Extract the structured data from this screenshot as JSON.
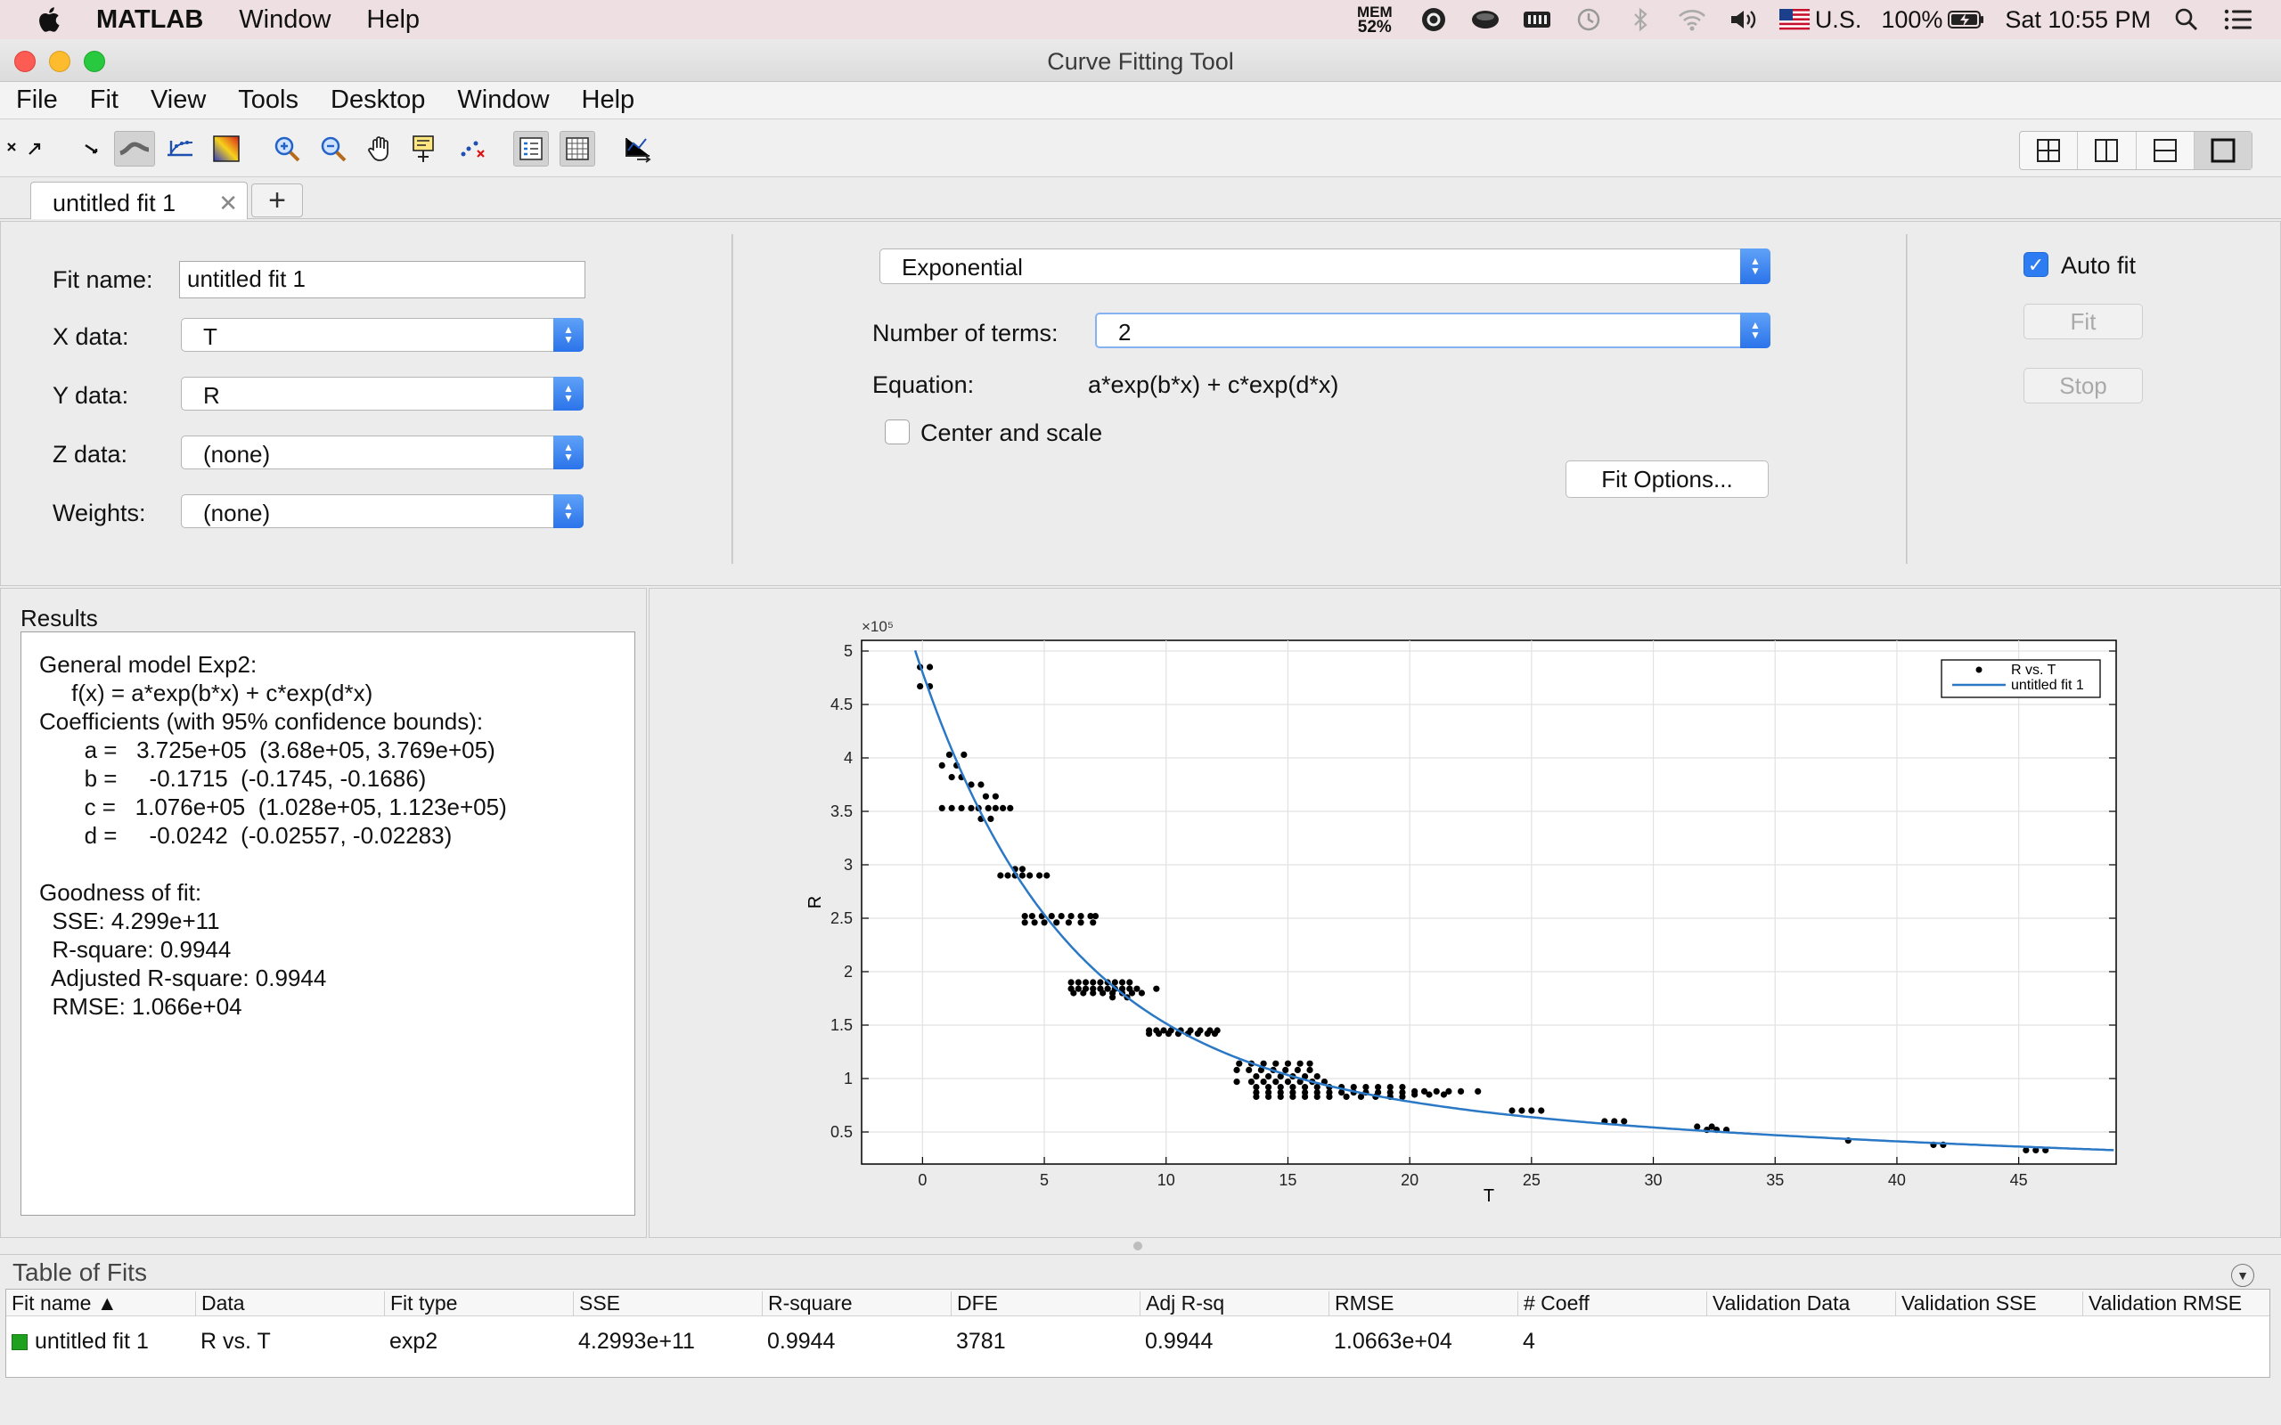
{
  "mac_menubar": {
    "app_name": "MATLAB",
    "menus": [
      "Window",
      "Help"
    ],
    "mem_label": "MEM",
    "mem_value": "52%",
    "input_source": "U.S.",
    "battery": "100%",
    "clock": "Sat 10:55 PM"
  },
  "window": {
    "title": "Curve Fitting Tool"
  },
  "menu": [
    "File",
    "Fit",
    "View",
    "Tools",
    "Desktop",
    "Window",
    "Help"
  ],
  "tabs": [
    {
      "label": "untitled fit 1"
    }
  ],
  "tab_add": "+",
  "setup": {
    "fit_name_label": "Fit name:",
    "fit_name_value": "untitled fit 1",
    "x_label": "X data:",
    "x_value": "T",
    "y_label": "Y data:",
    "y_value": "R",
    "z_label": "Z data:",
    "z_value": "(none)",
    "w_label": "Weights:",
    "w_value": "(none)",
    "fit_type": "Exponential",
    "num_terms_label": "Number of terms:",
    "num_terms_value": "2",
    "equation_label": "Equation:",
    "equation_value": "a*exp(b*x) + c*exp(d*x)",
    "center_scale_label": "Center and scale",
    "fit_options_button": "Fit Options...",
    "auto_fit_label": "Auto fit",
    "fit_button": "Fit",
    "stop_button": "Stop"
  },
  "results": {
    "title": "Results",
    "text": "General model Exp2:\n     f(x) = a*exp(b*x) + c*exp(d*x)\nCoefficients (with 95% confidence bounds):\n       a =   3.725e+05  (3.68e+05, 3.769e+05)\n       b =     -0.1715  (-0.1745, -0.1686)\n       c =   1.076e+05  (1.028e+05, 1.123e+05)\n       d =     -0.0242  (-0.02557, -0.02283)\n\nGoodness of fit:\n  SSE: 4.299e+11\n  R-square: 0.9944\n  Adjusted R-square: 0.9944\n  RMSE: 1.066e+04"
  },
  "chart_data": {
    "type": "scatter",
    "xlabel": "T",
    "ylabel": "R",
    "exponent_label": "×10⁵",
    "xlim": [
      -2.5,
      49
    ],
    "ylim": [
      0.2,
      5.1
    ],
    "x_ticks": [
      0,
      5,
      10,
      15,
      20,
      25,
      30,
      35,
      40,
      45
    ],
    "y_ticks": [
      0.5,
      1,
      1.5,
      2,
      2.5,
      3,
      3.5,
      4,
      4.5,
      5
    ],
    "y_tick_labels": [
      "0.5",
      "1",
      "1.5",
      "2",
      "2.5",
      "3",
      "3.5",
      "4",
      "4.5",
      "5"
    ],
    "grid": true,
    "legend_position": "top-right",
    "series": [
      {
        "name": "R vs. T",
        "kind": "points",
        "color": "#000000",
        "points": [
          [
            -0.1,
            4.85
          ],
          [
            0.3,
            4.85
          ],
          [
            -0.1,
            4.67
          ],
          [
            0.3,
            4.67
          ],
          [
            0.8,
            3.93
          ],
          [
            1.1,
            4.03
          ],
          [
            1.4,
            3.93
          ],
          [
            1.7,
            4.03
          ],
          [
            1.2,
            3.82
          ],
          [
            1.6,
            3.82
          ],
          [
            2.0,
            3.75
          ],
          [
            2.4,
            3.75
          ],
          [
            0.8,
            3.53
          ],
          [
            1.2,
            3.53
          ],
          [
            1.6,
            3.53
          ],
          [
            2.0,
            3.53
          ],
          [
            2.3,
            3.53
          ],
          [
            2.7,
            3.53
          ],
          [
            3.0,
            3.53
          ],
          [
            3.3,
            3.53
          ],
          [
            3.6,
            3.53
          ],
          [
            2.6,
            3.64
          ],
          [
            3.0,
            3.64
          ],
          [
            2.4,
            3.43
          ],
          [
            2.8,
            3.43
          ],
          [
            3.2,
            2.9
          ],
          [
            3.5,
            2.9
          ],
          [
            3.8,
            2.9
          ],
          [
            4.1,
            2.9
          ],
          [
            4.4,
            2.9
          ],
          [
            4.8,
            2.9
          ],
          [
            5.1,
            2.9
          ],
          [
            3.8,
            2.96
          ],
          [
            4.1,
            2.96
          ],
          [
            4.2,
            2.52
          ],
          [
            4.5,
            2.52
          ],
          [
            4.9,
            2.52
          ],
          [
            5.3,
            2.52
          ],
          [
            5.7,
            2.52
          ],
          [
            6.1,
            2.52
          ],
          [
            6.5,
            2.52
          ],
          [
            6.9,
            2.52
          ],
          [
            7.1,
            2.52
          ],
          [
            4.2,
            2.46
          ],
          [
            4.6,
            2.46
          ],
          [
            5.0,
            2.46
          ],
          [
            5.5,
            2.46
          ],
          [
            6.0,
            2.46
          ],
          [
            6.5,
            2.46
          ],
          [
            7.0,
            2.46
          ],
          [
            6.1,
            1.9
          ],
          [
            6.4,
            1.9
          ],
          [
            6.7,
            1.9
          ],
          [
            7.0,
            1.9
          ],
          [
            7.3,
            1.9
          ],
          [
            7.6,
            1.9
          ],
          [
            7.9,
            1.9
          ],
          [
            8.2,
            1.9
          ],
          [
            8.5,
            1.9
          ],
          [
            6.1,
            1.84
          ],
          [
            6.4,
            1.84
          ],
          [
            6.7,
            1.84
          ],
          [
            7.0,
            1.84
          ],
          [
            7.3,
            1.84
          ],
          [
            7.6,
            1.84
          ],
          [
            7.9,
            1.84
          ],
          [
            8.2,
            1.84
          ],
          [
            8.5,
            1.84
          ],
          [
            8.8,
            1.84
          ],
          [
            9.6,
            1.84
          ],
          [
            6.2,
            1.8
          ],
          [
            6.6,
            1.8
          ],
          [
            7.0,
            1.8
          ],
          [
            7.4,
            1.8
          ],
          [
            7.8,
            1.8
          ],
          [
            8.2,
            1.8
          ],
          [
            8.6,
            1.8
          ],
          [
            9.0,
            1.8
          ],
          [
            7.8,
            1.76
          ],
          [
            8.4,
            1.76
          ],
          [
            9.3,
            1.45
          ],
          [
            9.6,
            1.45
          ],
          [
            9.9,
            1.45
          ],
          [
            10.2,
            1.45
          ],
          [
            10.6,
            1.45
          ],
          [
            11.0,
            1.45
          ],
          [
            11.4,
            1.45
          ],
          [
            11.8,
            1.45
          ],
          [
            12.1,
            1.45
          ],
          [
            9.3,
            1.42
          ],
          [
            9.7,
            1.42
          ],
          [
            10.1,
            1.42
          ],
          [
            10.5,
            1.42
          ],
          [
            10.9,
            1.42
          ],
          [
            11.3,
            1.42
          ],
          [
            11.7,
            1.42
          ],
          [
            12.0,
            1.42
          ],
          [
            13.0,
            1.14
          ],
          [
            13.5,
            1.14
          ],
          [
            14.0,
            1.14
          ],
          [
            14.5,
            1.14
          ],
          [
            15.0,
            1.14
          ],
          [
            15.5,
            1.14
          ],
          [
            15.9,
            1.14
          ],
          [
            12.9,
            1.08
          ],
          [
            13.4,
            1.08
          ],
          [
            13.9,
            1.08
          ],
          [
            14.4,
            1.08
          ],
          [
            14.9,
            1.08
          ],
          [
            15.4,
            1.08
          ],
          [
            15.9,
            1.08
          ],
          [
            12.9,
            0.97
          ],
          [
            13.5,
            0.97
          ],
          [
            14.0,
            0.97
          ],
          [
            14.5,
            0.97
          ],
          [
            15.0,
            0.97
          ],
          [
            15.5,
            0.97
          ],
          [
            16.0,
            0.97
          ],
          [
            16.5,
            0.97
          ],
          [
            13.7,
            1.02
          ],
          [
            14.2,
            1.02
          ],
          [
            14.7,
            1.02
          ],
          [
            15.2,
            1.02
          ],
          [
            15.7,
            1.02
          ],
          [
            16.2,
            1.02
          ],
          [
            13.7,
            0.92
          ],
          [
            14.2,
            0.92
          ],
          [
            14.7,
            0.92
          ],
          [
            15.2,
            0.92
          ],
          [
            15.7,
            0.92
          ],
          [
            16.2,
            0.92
          ],
          [
            16.7,
            0.92
          ],
          [
            17.2,
            0.92
          ],
          [
            17.7,
            0.92
          ],
          [
            18.2,
            0.92
          ],
          [
            18.7,
            0.92
          ],
          [
            19.2,
            0.92
          ],
          [
            19.7,
            0.92
          ],
          [
            13.7,
            0.87
          ],
          [
            14.2,
            0.87
          ],
          [
            14.7,
            0.87
          ],
          [
            15.2,
            0.87
          ],
          [
            15.7,
            0.87
          ],
          [
            16.2,
            0.87
          ],
          [
            16.7,
            0.87
          ],
          [
            17.2,
            0.87
          ],
          [
            17.7,
            0.87
          ],
          [
            18.2,
            0.87
          ],
          [
            18.7,
            0.87
          ],
          [
            19.2,
            0.87
          ],
          [
            19.7,
            0.87
          ],
          [
            13.7,
            0.83
          ],
          [
            14.2,
            0.83
          ],
          [
            14.7,
            0.83
          ],
          [
            15.2,
            0.83
          ],
          [
            15.7,
            0.83
          ],
          [
            16.2,
            0.83
          ],
          [
            16.7,
            0.83
          ],
          [
            17.4,
            0.83
          ],
          [
            18.0,
            0.83
          ],
          [
            18.6,
            0.83
          ],
          [
            19.2,
            0.83
          ],
          [
            19.7,
            0.83
          ],
          [
            20.2,
            0.88
          ],
          [
            20.6,
            0.88
          ],
          [
            21.1,
            0.88
          ],
          [
            21.6,
            0.88
          ],
          [
            22.1,
            0.88
          ],
          [
            22.8,
            0.88
          ],
          [
            20.2,
            0.85
          ],
          [
            20.8,
            0.85
          ],
          [
            21.4,
            0.85
          ],
          [
            24.2,
            0.7
          ],
          [
            24.6,
            0.7
          ],
          [
            25.0,
            0.7
          ],
          [
            25.4,
            0.7
          ],
          [
            28.0,
            0.6
          ],
          [
            28.4,
            0.6
          ],
          [
            28.8,
            0.6
          ],
          [
            31.8,
            0.55
          ],
          [
            32.2,
            0.52
          ],
          [
            32.6,
            0.52
          ],
          [
            33.0,
            0.52
          ],
          [
            32.4,
            0.55
          ],
          [
            38.0,
            0.42
          ],
          [
            41.5,
            0.38
          ],
          [
            41.9,
            0.38
          ],
          [
            45.3,
            0.33
          ],
          [
            45.7,
            0.33
          ],
          [
            46.1,
            0.33
          ]
        ]
      },
      {
        "name": "untitled fit 1",
        "kind": "curve",
        "color": "#2a78c6",
        "model": "a*exp(b*x) + c*exp(d*x)",
        "coefficients": {
          "a": 372500,
          "b": -0.1715,
          "c": 107600,
          "d": -0.0242
        },
        "y_scale": 100000
      }
    ]
  },
  "table_of_fits": {
    "title": "Table of Fits",
    "headers": [
      "Fit name ▲",
      "Data",
      "Fit type",
      "SSE",
      "R-square",
      "DFE",
      "Adj R-sq",
      "RMSE",
      "# Coeff",
      "Validation Data",
      "Validation SSE",
      "Validation RMSE"
    ],
    "rows": [
      [
        "untitled fit 1",
        "R vs. T",
        "exp2",
        "4.2993e+11",
        "0.9944",
        "3781",
        "0.9944",
        "1.0663e+04",
        "4",
        "",
        "",
        ""
      ]
    ]
  }
}
